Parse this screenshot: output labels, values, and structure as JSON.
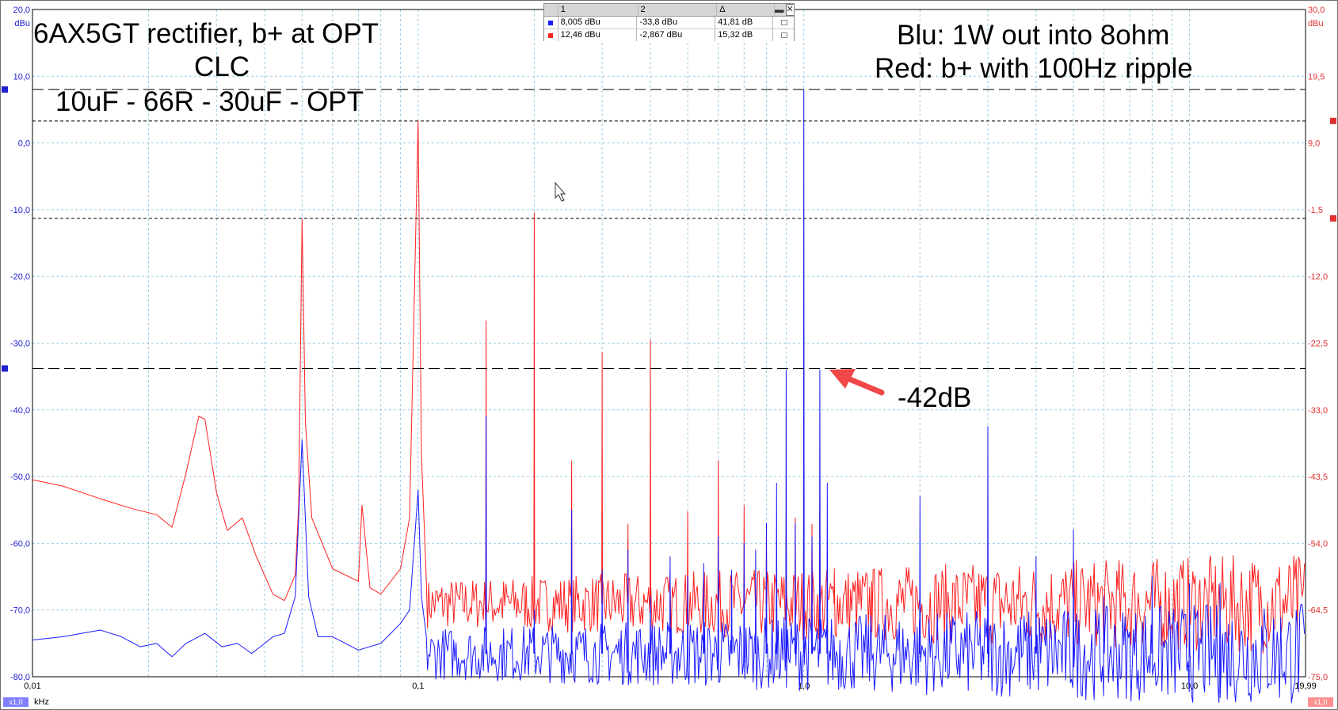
{
  "chart_data": {
    "type": "line",
    "x_scale": "log",
    "xlim": [
      0.01,
      19.99
    ],
    "x_ticks": [
      "0,01",
      "0,1",
      "1,0",
      "10,0",
      "19,99"
    ],
    "x_tick_values": [
      0.01,
      0.1,
      1.0,
      10.0,
      19.99
    ],
    "x_unit": "kHz",
    "x_zoom": "x1,0",
    "y_left": {
      "unit": "dBu",
      "zoom": "x1,0",
      "ylim": [
        -80,
        20
      ],
      "ticks": [
        "20,0",
        "10,0",
        "0,0",
        "-10,0",
        "-20,0",
        "-30,0",
        "-40,0",
        "-50,0",
        "-60,0",
        "-70,0",
        "-80,0"
      ],
      "tick_values": [
        20,
        10,
        0,
        -10,
        -20,
        -30,
        -40,
        -50,
        -60,
        -70,
        -80
      ]
    },
    "y_right": {
      "unit": "dBu",
      "zoom": "x1,0",
      "ylim": [
        -75,
        30
      ],
      "ticks": [
        "30,0",
        "19,5",
        "9,0",
        "-1,5",
        "-12,0",
        "-22,5",
        "-33,0",
        "-43,5",
        "-54,0",
        "-64,5",
        "-75,0"
      ],
      "tick_values": [
        30,
        19.5,
        9,
        -1.5,
        -12,
        -22.5,
        -33,
        -43.5,
        -54,
        -64.5,
        -75
      ]
    },
    "grid": true,
    "series": [
      {
        "color": "#ff2020",
        "axis": "right",
        "noise_floor": -63.5,
        "curve": [
          [
            0.01,
            -44
          ],
          [
            0.012,
            -45
          ],
          [
            0.015,
            -47
          ],
          [
            0.018,
            -48.5
          ],
          [
            0.021,
            -49.5
          ],
          [
            0.023,
            -51.5
          ],
          [
            0.025,
            -43
          ],
          [
            0.027,
            -34
          ],
          [
            0.028,
            -34.5
          ],
          [
            0.03,
            -46
          ],
          [
            0.032,
            -52
          ],
          [
            0.035,
            -50
          ],
          [
            0.038,
            -56
          ],
          [
            0.042,
            -62
          ],
          [
            0.045,
            -63
          ],
          [
            0.048,
            -59
          ],
          [
            0.049,
            -48
          ],
          [
            0.05,
            -3
          ],
          [
            0.051,
            -35
          ],
          [
            0.053,
            -50
          ],
          [
            0.06,
            -58
          ],
          [
            0.07,
            -60
          ],
          [
            0.0715,
            -48
          ],
          [
            0.075,
            -61
          ],
          [
            0.08,
            -62
          ],
          [
            0.09,
            -58
          ],
          [
            0.095,
            -50
          ],
          [
            0.1,
            12.5
          ],
          [
            0.102,
            -40
          ],
          [
            0.105,
            -60
          ]
        ],
        "spikes": [
          [
            0.15,
            -19
          ],
          [
            0.2,
            -2
          ],
          [
            0.25,
            -41
          ],
          [
            0.3,
            -24
          ],
          [
            0.35,
            -51
          ],
          [
            0.4,
            -22
          ],
          [
            0.5,
            -49
          ],
          [
            0.6,
            -41
          ],
          [
            0.7,
            -48
          ],
          [
            0.8,
            -52
          ],
          [
            0.9,
            -49
          ],
          [
            0.95,
            -50
          ],
          [
            1.0,
            -49
          ],
          [
            1.05,
            -51
          ],
          [
            1.1,
            -48
          ],
          [
            1.2,
            -58
          ],
          [
            1.5,
            -60
          ]
        ]
      },
      {
        "color": "#1a1aff",
        "axis": "left",
        "noise_floor": -76.5,
        "curve": [
          [
            0.01,
            -74.5
          ],
          [
            0.012,
            -74
          ],
          [
            0.015,
            -73
          ],
          [
            0.017,
            -74
          ],
          [
            0.019,
            -75.5
          ],
          [
            0.021,
            -75
          ],
          [
            0.023,
            -77
          ],
          [
            0.025,
            -75
          ],
          [
            0.028,
            -73.5
          ],
          [
            0.031,
            -75.5
          ],
          [
            0.034,
            -75
          ],
          [
            0.037,
            -76.5
          ],
          [
            0.04,
            -75
          ],
          [
            0.042,
            -74
          ],
          [
            0.045,
            -73.5
          ],
          [
            0.048,
            -68
          ],
          [
            0.05,
            -44.5
          ],
          [
            0.052,
            -68
          ],
          [
            0.055,
            -74
          ],
          [
            0.06,
            -74
          ],
          [
            0.07,
            -76
          ],
          [
            0.08,
            -75
          ],
          [
            0.09,
            -72
          ],
          [
            0.095,
            -70
          ],
          [
            0.1,
            -52
          ],
          [
            0.102,
            -68
          ],
          [
            0.105,
            -74
          ]
        ],
        "spikes": [
          [
            0.15,
            -41
          ],
          [
            0.2,
            -70
          ],
          [
            0.25,
            -55
          ],
          [
            0.3,
            -64
          ],
          [
            0.35,
            -61
          ],
          [
            0.4,
            -68
          ],
          [
            0.45,
            -62
          ],
          [
            0.5,
            -65
          ],
          [
            0.55,
            -63
          ],
          [
            0.6,
            -59
          ],
          [
            0.65,
            -64
          ],
          [
            0.7,
            -60
          ],
          [
            0.75,
            -61
          ],
          [
            0.8,
            -57
          ],
          [
            0.85,
            -51
          ],
          [
            0.9,
            -34
          ],
          [
            0.95,
            -57
          ],
          [
            1.0,
            8
          ],
          [
            1.05,
            -59
          ],
          [
            1.1,
            -34
          ],
          [
            1.15,
            -51
          ],
          [
            2.0,
            -53
          ],
          [
            3.0,
            -42.5
          ],
          [
            4.0,
            -62
          ],
          [
            5.0,
            -58
          ],
          [
            6.0,
            -68
          ],
          [
            8.0,
            -65
          ],
          [
            10.0,
            -66
          ],
          [
            12.0,
            -66
          ]
        ]
      }
    ]
  },
  "cursors": {
    "left_lines": [
      8.005,
      -33.8
    ],
    "right_lines": [
      12.46,
      -2.867
    ]
  },
  "readout": {
    "headers": [
      "1",
      "2",
      "Δ"
    ],
    "rows": [
      {
        "color": "#1a1aff",
        "v1": "8,005 dBu",
        "v2": "-33,8 dBu",
        "delta": "41,81 dB"
      },
      {
        "color": "#ff2020",
        "v1": "12,46 dBu",
        "v2": "-2,867 dBu",
        "delta": "15,32 dB"
      }
    ],
    "minimize_glyph": "▬",
    "close_glyph": "✕"
  },
  "annotations": {
    "title_line1": "6AX5GT rectifier, b+ at OPT",
    "title_line2": "CLC",
    "title_line3": "10uF - 66R - 30uF - OPT",
    "legend_line1": "Blu: 1W out into 8ohm",
    "legend_line2": "Red: b+ with 100Hz ripple",
    "arrow_label": "-42dB",
    "arrow_color": "#f04848"
  },
  "colors": {
    "left_axis": "#2020d0",
    "right_axis": "#e03030",
    "grid": "#9ccbe3",
    "cursor": "#000000"
  }
}
